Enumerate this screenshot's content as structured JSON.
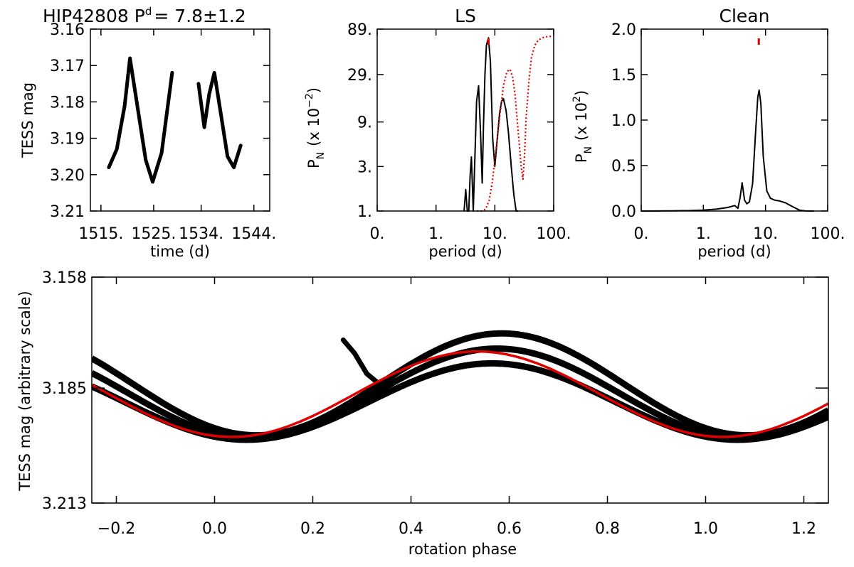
{
  "chart_data": [
    {
      "id": "lightcurve",
      "type": "scatter",
      "title": "HIP42808 P",
      "title_super": "d",
      "title_value": "= 7.8±1.2",
      "xlabel": "time (d)",
      "ylabel": "TESS mag",
      "xlim": [
        1513,
        1547
      ],
      "ylim": [
        3.21,
        3.16
      ],
      "yticks": [
        "3.16",
        "3.17",
        "3.18",
        "3.19",
        "3.20",
        "3.21"
      ],
      "xticks": [
        "1515.",
        "1525.",
        "1534.",
        "1544."
      ],
      "segments": [
        {
          "x": [
            1516.5,
            1518,
            1519.5,
            1520.5,
            1522,
            1523.5,
            1524.8,
            1526.5,
            1528.5
          ],
          "y": [
            3.198,
            3.193,
            3.181,
            3.168,
            3.182,
            3.196,
            3.202,
            3.194,
            3.172
          ]
        },
        {
          "x": [
            1533.5,
            1534.6,
            1535.5,
            1536.5,
            1537.6,
            1539,
            1540.2,
            1541.5
          ],
          "y": [
            3.175,
            3.187,
            3.178,
            3.172,
            3.182,
            3.195,
            3.198,
            3.192
          ]
        }
      ]
    },
    {
      "id": "ls",
      "type": "line",
      "title": "LS",
      "xlabel": "period (d)",
      "ylabel": "P",
      "ylabel_sub": "N",
      "ylabel_unit": "(x 10",
      "ylabel_exp": "−2",
      "ylabel_close": ")",
      "xscale": "log",
      "xlim": [
        0.1,
        100
      ],
      "xticks": [
        "0.",
        "1.",
        "10.",
        "100."
      ],
      "yscale": "log",
      "ylim": [
        1,
        89
      ],
      "yticks": [
        "1.",
        "3.",
        "9.",
        "29.",
        "89."
      ],
      "peak_marker_period": 7.8,
      "series": [
        {
          "name": "power",
          "color": "#000000",
          "x": [
            3,
            3.2,
            3.4,
            3.6,
            3.8,
            4.0,
            4.3,
            4.6,
            4.9,
            5.3,
            5.7,
            6.1,
            6.4,
            6.8,
            7.2,
            7.8,
            8.4,
            9.2,
            10,
            11,
            12,
            13,
            14,
            15.5,
            17,
            19,
            21,
            23,
            25
          ],
          "y": [
            1,
            1.7,
            1.0,
            1.0,
            2.4,
            3.8,
            1.0,
            4.2,
            15,
            22,
            7,
            2,
            8,
            30,
            60,
            72,
            40,
            6,
            3,
            6,
            11,
            15,
            16,
            12,
            7,
            3,
            1.5,
            1.0,
            1.0
          ]
        },
        {
          "name": "window",
          "color": "#e00000",
          "style": "dotted",
          "x": [
            5,
            6,
            7,
            8,
            9,
            10,
            11,
            12,
            13,
            14,
            16,
            18,
            20,
            22,
            25,
            28,
            30,
            32,
            34,
            38,
            42,
            48,
            55,
            65,
            80,
            95
          ],
          "y": [
            1,
            1,
            1.05,
            1.3,
            2.0,
            3.5,
            6,
            10,
            15,
            22,
            31,
            33,
            28,
            18,
            7,
            3,
            2.2,
            4,
            10,
            25,
            45,
            60,
            68,
            72,
            74,
            75
          ]
        }
      ]
    },
    {
      "id": "clean",
      "type": "line",
      "title": "Clean",
      "xlabel": "period (d)",
      "ylabel": "P",
      "ylabel_sub": "N",
      "ylabel_unit": "(x 10",
      "ylabel_exp": "2",
      "ylabel_close": ")",
      "xscale": "log",
      "xlim": [
        0.1,
        100
      ],
      "xticks": [
        "0.",
        "1.",
        "10.",
        "100."
      ],
      "ylim": [
        0,
        2.0
      ],
      "yticks": [
        "0.0",
        "0.5",
        "1.0",
        "1.5",
        "2.0"
      ],
      "peak_marker_period": 7.8,
      "series": [
        {
          "name": "clean",
          "color": "#000000",
          "x": [
            0.1,
            0.3,
            0.6,
            1.0,
            1.6,
            2.5,
            3.2,
            3.6,
            3.9,
            4.2,
            4.6,
            5.0,
            5.5,
            6.2,
            6.9,
            7.5,
            7.9,
            8.4,
            9.2,
            10.5,
            12,
            14,
            17,
            21,
            27,
            35,
            45,
            60
          ],
          "y": [
            0,
            0.002,
            0.005,
            0.01,
            0.02,
            0.04,
            0.06,
            0.03,
            0.15,
            0.31,
            0.12,
            0.08,
            0.1,
            0.3,
            0.85,
            1.25,
            1.33,
            1.18,
            0.6,
            0.22,
            0.14,
            0.12,
            0.11,
            0.09,
            0.05,
            0.01,
            0.0,
            0.0
          ]
        }
      ]
    },
    {
      "id": "phased",
      "type": "scatter",
      "xlabel": "rotation phase",
      "ylabel": "TESS mag (arbitrary scale)",
      "xlim": [
        -0.25,
        1.25
      ],
      "xticks": [
        "−0.2",
        "0.0",
        "0.2",
        "0.4",
        "0.6",
        "0.8",
        "1.0",
        "1.2"
      ],
      "ylim": [
        3.213,
        3.158
      ],
      "yticks": [
        "3.158",
        "3.185",
        "3.213"
      ],
      "fit": {
        "color": "#e00000",
        "mean": 3.1865,
        "amplitude": 0.0104,
        "phase_of_max": 0.535
      },
      "bands": [
        {
          "offset": 0.0018,
          "amplitude": 0.0093,
          "phase_shift": 0.03
        },
        {
          "offset": -0.0002,
          "amplitude": 0.0109,
          "phase_shift": 0.04
        },
        {
          "offset": -0.0024,
          "amplitude": 0.0124,
          "phase_shift": 0.05
        }
      ],
      "spur": {
        "x": [
          0.262,
          0.285,
          0.31,
          0.34
        ],
        "y": [
          3.1733,
          3.1765,
          3.1815,
          3.1845
        ]
      }
    }
  ]
}
